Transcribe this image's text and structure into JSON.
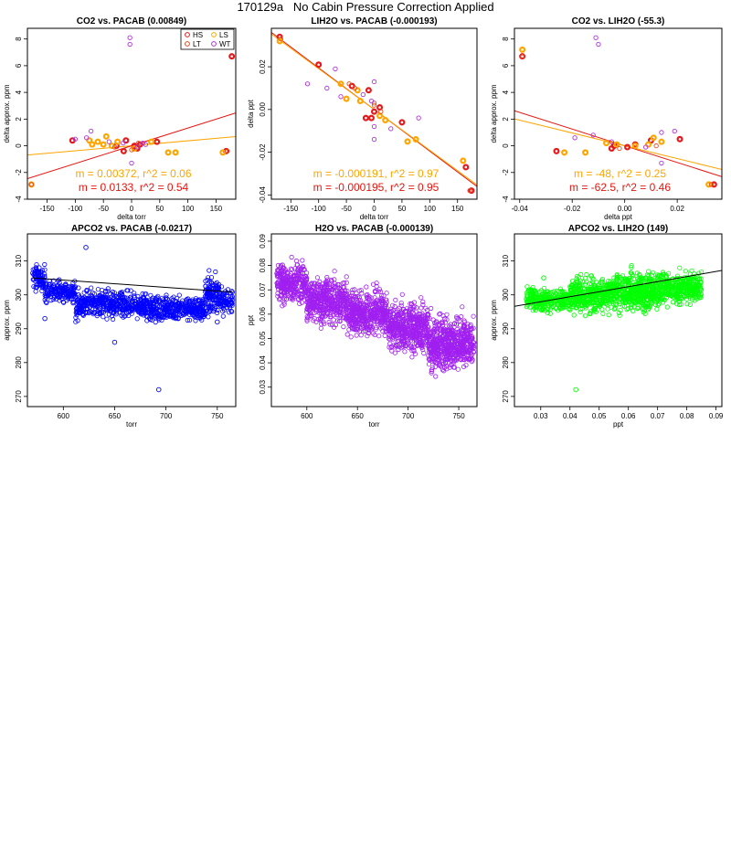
{
  "page": {
    "title": "170129a   No Cabin Pressure Correction Applied"
  },
  "colors": {
    "HS": "#e41a1c",
    "LS": "#ffa500",
    "LT": "#e4471c",
    "WT": "#b030e0",
    "fit_red": "#e8140e",
    "fit_orange": "#ffa500",
    "apco2_points": "#0000ff",
    "h2o_points": "#a020f0",
    "apco2_lih2o_points": "#00ff00",
    "trend_black": "#000000",
    "trend_purple": "#a020f0"
  },
  "chart_data": [
    {
      "id": "p1",
      "type": "scatter",
      "title": "CO2 vs. PACAB (0.00849)",
      "xlabel": "delta torr",
      "ylabel": "delta approx. ppm",
      "xlim": [
        -185,
        185
      ],
      "ylim": [
        -4,
        8.8
      ],
      "xticks": [
        "-150",
        "-100",
        "-50",
        "0",
        "50",
        "100",
        "150"
      ],
      "xtick_values": [
        -150,
        -100,
        -50,
        0,
        50,
        100,
        150
      ],
      "yticks": [
        "-4",
        "-2",
        "0",
        "2",
        "4",
        "6",
        "8"
      ],
      "ytick_values": [
        -4,
        -2,
        0,
        2,
        4,
        6,
        8
      ],
      "legend": {
        "position": "top-right",
        "entries": [
          "HS",
          "LS",
          "LT",
          "WT"
        ]
      },
      "series": [
        {
          "name": "HS",
          "points": [
            [
              -105,
              0.4
            ],
            [
              -10,
              0.4
            ],
            [
              -14,
              -0.4
            ],
            [
              5,
              0
            ],
            [
              15,
              0.1
            ],
            [
              45,
              0.3
            ],
            [
              168,
              -0.4
            ],
            [
              178,
              6.7
            ],
            [
              -27,
              0
            ],
            [
              10,
              -0.2
            ]
          ]
        },
        {
          "name": "LS",
          "points": [
            [
              -178,
              -2.9
            ],
            [
              -60,
              0.3
            ],
            [
              -45,
              0.7
            ],
            [
              -50,
              0.1
            ],
            [
              -35,
              0
            ],
            [
              -25,
              0.3
            ],
            [
              -75,
              0.4
            ],
            [
              -70,
              0.1
            ],
            [
              5,
              -0.2
            ],
            [
              65,
              -0.5
            ],
            [
              78,
              -0.5
            ],
            [
              162,
              -0.5
            ],
            [
              35,
              0.3
            ]
          ]
        },
        {
          "name": "LT",
          "points": [
            [
              -178,
              -2.9
            ],
            [
              -30,
              -0.1
            ],
            [
              0,
              -0.3
            ],
            [
              12,
              0.2
            ],
            [
              170,
              -0.4
            ]
          ]
        },
        {
          "name": "WT",
          "points": [
            [
              -72,
              1.1
            ],
            [
              -100,
              0.5
            ],
            [
              -3,
              7.6
            ],
            [
              -3,
              8.1
            ],
            [
              0,
              -1.3
            ],
            [
              20,
              0.2
            ],
            [
              -40,
              0.3
            ],
            [
              -80,
              0.6
            ],
            [
              10,
              -0.1
            ],
            [
              -15,
              0.2
            ],
            [
              25,
              0.1
            ]
          ]
        }
      ],
      "fits": [
        {
          "color": "fit_orange",
          "slope": 0.00372,
          "intercept": 0
        },
        {
          "color": "fit_red",
          "slope": 0.0133,
          "intercept": 0
        }
      ],
      "annotations": [
        {
          "text": "m = 0.00372, r^2 = 0.06",
          "color": "fit_orange"
        },
        {
          "text": "m = 0.0133, r^2 = 0.54",
          "color": "fit_red"
        }
      ]
    },
    {
      "id": "p2",
      "type": "scatter",
      "title": "LIH2O vs. PACAB (-0.000193)",
      "xlabel": "delta torr",
      "ylabel": "delta ppt",
      "xlim": [
        -185,
        185
      ],
      "ylim": [
        -0.042,
        0.038
      ],
      "xticks": [
        "-150",
        "-100",
        "-50",
        "0",
        "50",
        "100",
        "150"
      ],
      "xtick_values": [
        -150,
        -100,
        -50,
        0,
        50,
        100,
        150
      ],
      "yticks": [
        "-0.04",
        "-0.02",
        "0.00",
        "0.02"
      ],
      "ytick_values": [
        -0.04,
        -0.02,
        0,
        0.02
      ],
      "series": [
        {
          "name": "HS",
          "points": [
            [
              -170,
              0.034
            ],
            [
              -100,
              0.021
            ],
            [
              -40,
              0.011
            ],
            [
              -10,
              0.009
            ],
            [
              -5,
              -0.004
            ],
            [
              10,
              0.001
            ],
            [
              50,
              -0.006
            ],
            [
              175,
              -0.038
            ],
            [
              165,
              -0.027
            ],
            [
              -15,
              -0.004
            ],
            [
              0,
              -0.001
            ]
          ]
        },
        {
          "name": "LS",
          "points": [
            [
              -170,
              0.032
            ],
            [
              -60,
              0.012
            ],
            [
              -50,
              0.005
            ],
            [
              -30,
              0.009
            ],
            [
              -25,
              0.004
            ],
            [
              10,
              -0.003
            ],
            [
              60,
              -0.015
            ],
            [
              75,
              -0.014
            ],
            [
              160,
              -0.024
            ],
            [
              20,
              -0.005
            ]
          ]
        },
        {
          "name": "LT",
          "points": [
            [
              -168,
              0.033
            ],
            [
              -45,
              0.012
            ],
            [
              -35,
              0.01
            ],
            [
              0,
              0.002
            ],
            [
              12,
              -0.001
            ],
            [
              172,
              -0.038
            ],
            [
              0,
              0.003
            ]
          ]
        },
        {
          "name": "WT",
          "points": [
            [
              -70,
              0.019
            ],
            [
              -120,
              0.012
            ],
            [
              -85,
              0.01
            ],
            [
              -60,
              0.006
            ],
            [
              0,
              0.013
            ],
            [
              0,
              -0.008
            ],
            [
              0,
              -0.014
            ],
            [
              80,
              -0.004
            ],
            [
              30,
              -0.009
            ],
            [
              -20,
              0.007
            ],
            [
              -5,
              0.004
            ]
          ]
        }
      ],
      "fits": [
        {
          "color": "fit_red",
          "slope": -0.000195,
          "intercept": 0
        },
        {
          "color": "fit_orange",
          "slope": -0.000191,
          "intercept": 0
        }
      ],
      "annotations": [
        {
          "text": "m = -0.000191, r^2 = 0.97",
          "color": "fit_orange"
        },
        {
          "text": "m = -0.000195, r^2 = 0.95",
          "color": "fit_red"
        }
      ]
    },
    {
      "id": "p3",
      "type": "scatter",
      "title": "CO2 vs. LIH2O (-55.3)",
      "xlabel": "delta ppt",
      "ylabel": "delta approx. ppm",
      "xlim": [
        -0.042,
        0.037
      ],
      "ylim": [
        -4,
        8.8
      ],
      "xticks": [
        "-0.04",
        "-0.02",
        "0.00",
        "0.02"
      ],
      "xtick_values": [
        -0.04,
        -0.02,
        0,
        0.02
      ],
      "yticks": [
        "-4",
        "-2",
        "0",
        "2",
        "4",
        "6",
        "8"
      ],
      "ytick_values": [
        -4,
        -2,
        0,
        2,
        4,
        6,
        8
      ],
      "series": [
        {
          "name": "HS",
          "points": [
            [
              -0.039,
              6.7
            ],
            [
              -0.026,
              -0.4
            ],
            [
              -0.004,
              0
            ],
            [
              0.001,
              -0.1
            ],
            [
              0.01,
              0.4
            ],
            [
              0.021,
              0.5
            ],
            [
              0.034,
              -2.9
            ],
            [
              -0.005,
              -0.2
            ],
            [
              0.004,
              0.1
            ]
          ]
        },
        {
          "name": "LS",
          "points": [
            [
              -0.039,
              7.2
            ],
            [
              -0.023,
              -0.5
            ],
            [
              -0.015,
              -0.5
            ],
            [
              -0.007,
              0.2
            ],
            [
              -0.003,
              0.1
            ],
            [
              0.004,
              0
            ],
            [
              0.011,
              0.6
            ],
            [
              0.014,
              0.3
            ],
            [
              0.032,
              -2.9
            ],
            [
              0.009,
              0.1
            ]
          ]
        },
        {
          "name": "LT",
          "points": [
            [
              -0.039,
              6.7
            ],
            [
              -0.002,
              -0.2
            ],
            [
              0.012,
              0
            ],
            [
              0.033,
              -2.9
            ]
          ]
        },
        {
          "name": "WT",
          "points": [
            [
              -0.011,
              8.1
            ],
            [
              -0.01,
              7.6
            ],
            [
              -0.019,
              0.6
            ],
            [
              -0.012,
              0.8
            ],
            [
              0.008,
              -0.1
            ],
            [
              0.014,
              -1.3
            ],
            [
              0.014,
              1.0
            ],
            [
              0.019,
              1.1
            ],
            [
              -0.005,
              0.3
            ]
          ]
        }
      ],
      "fits": [
        {
          "color": "fit_red",
          "slope": -62.5,
          "intercept": 0
        },
        {
          "color": "fit_orange",
          "slope": -48,
          "intercept": 0
        }
      ],
      "annotations": [
        {
          "text": "m = -48, r^2 = 0.25",
          "color": "fit_orange"
        },
        {
          "text": "m = -62.5, r^2 = 0.46",
          "color": "fit_red"
        }
      ]
    },
    {
      "id": "p4",
      "type": "scatter",
      "title": "APCO2 vs. PACAB (-0.0217)",
      "xlabel": "torr",
      "ylabel": "approx. ppm",
      "xlim": [
        565,
        768
      ],
      "ylim": [
        267,
        318
      ],
      "xticks": [
        "600",
        "650",
        "700",
        "750"
      ],
      "xtick_values": [
        600,
        650,
        700,
        750
      ],
      "yticks": [
        "270",
        "280",
        "290",
        "300",
        "310"
      ],
      "ytick_values": [
        270,
        280,
        290,
        300,
        310
      ],
      "trend": {
        "color": "trend_black",
        "slope": -0.0217,
        "x0": 570,
        "y0": 305.0,
        "x1": 765,
        "y1": 300.8
      },
      "outlier_points": [
        [
          693,
          272
        ],
        [
          750,
          292
        ],
        [
          622,
          314
        ],
        [
          650,
          286
        ],
        [
          582,
          293
        ]
      ],
      "cloud": {
        "color": "apco2_points",
        "bands": [
          [
            570,
            582,
            298,
            312
          ],
          [
            582,
            612,
            295,
            307
          ],
          [
            612,
            620,
            288,
            305
          ],
          [
            620,
            650,
            290,
            305
          ],
          [
            650,
            680,
            290,
            304
          ],
          [
            680,
            700,
            289,
            303
          ],
          [
            700,
            738,
            289,
            303
          ],
          [
            738,
            752,
            290,
            310
          ],
          [
            752,
            765,
            291,
            305
          ]
        ]
      }
    },
    {
      "id": "p5",
      "type": "scatter",
      "title": "H2O vs. PACAB (-0.000139)",
      "xlabel": "torr",
      "ylabel": "ppt",
      "xlim": [
        565,
        768
      ],
      "ylim": [
        0.022,
        0.093
      ],
      "xticks": [
        "600",
        "650",
        "700",
        "750"
      ],
      "xtick_values": [
        600,
        650,
        700,
        750
      ],
      "yticks": [
        "0.03",
        "0.04",
        "0.05",
        "0.06",
        "0.07",
        "0.08",
        "0.09"
      ],
      "ytick_values": [
        0.03,
        0.04,
        0.05,
        0.06,
        0.07,
        0.08,
        0.09
      ],
      "trend": {
        "color": "trend_purple",
        "slope": -0.000139,
        "x0": 570,
        "y0": 0.072,
        "x1": 765,
        "y1": 0.045
      },
      "cloud": {
        "color": "h2o_points",
        "bands": [
          [
            570,
            600,
            0.058,
            0.088
          ],
          [
            600,
            640,
            0.048,
            0.083
          ],
          [
            640,
            680,
            0.043,
            0.078
          ],
          [
            680,
            720,
            0.036,
            0.073
          ],
          [
            720,
            765,
            0.028,
            0.068
          ]
        ]
      }
    },
    {
      "id": "p6",
      "type": "scatter",
      "title": "APCO2 vs. LIH2O (149)",
      "xlabel": "ppt",
      "ylabel": "approx. ppm",
      "xlim": [
        0.021,
        0.092
      ],
      "ylim": [
        267,
        318
      ],
      "xticks": [
        "0.03",
        "0.04",
        "0.05",
        "0.06",
        "0.07",
        "0.08",
        "0.09"
      ],
      "xtick_values": [
        0.03,
        0.04,
        0.05,
        0.06,
        0.07,
        0.08,
        0.09
      ],
      "yticks": [
        "270",
        "280",
        "290",
        "300",
        "310"
      ],
      "ytick_values": [
        270,
        280,
        290,
        300,
        310
      ],
      "trend": {
        "color": "trend_black",
        "slope": 149,
        "x0": 0.021,
        "y0": 296.6,
        "x1": 0.092,
        "y1": 307.2
      },
      "outlier_points": [
        [
          0.042,
          272
        ],
        [
          0.028,
          299
        ],
        [
          0.031,
          305
        ]
      ],
      "cloud": {
        "color": "apco2_lih2o_points",
        "bands": [
          [
            0.025,
            0.04,
            292,
            305
          ],
          [
            0.04,
            0.055,
            290,
            310
          ],
          [
            0.055,
            0.07,
            290,
            312
          ],
          [
            0.07,
            0.085,
            293,
            311
          ]
        ]
      }
    }
  ]
}
